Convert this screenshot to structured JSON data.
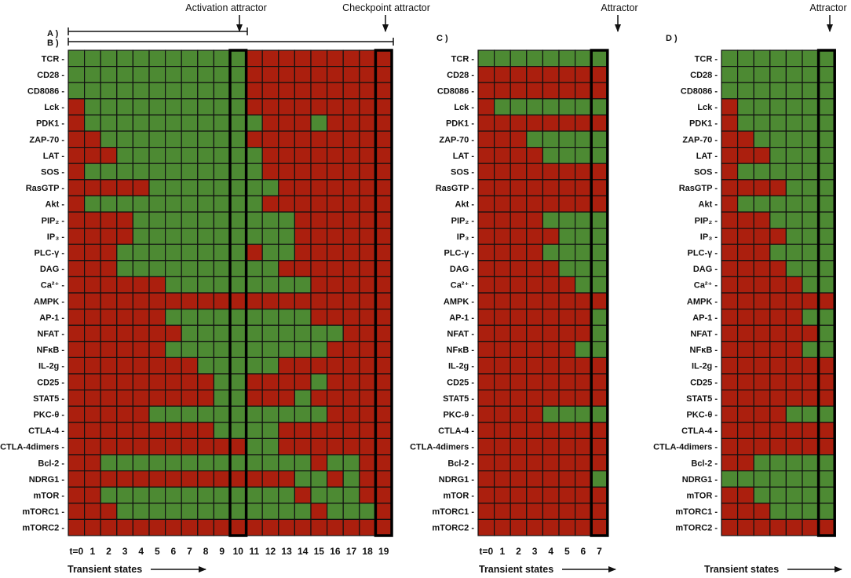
{
  "colors": {
    "on": "#4d8a33",
    "off": "#ab1f0e",
    "grid": "#111111",
    "text": "#111111"
  },
  "legend_hint": {
    "on_meaning": "active (green)",
    "off_meaning": "inactive (red)"
  },
  "annotations": {
    "activation_attractor": "Activation attractor",
    "checkpoint_attractor": "Checkpoint attractor",
    "attractor_c": "Attractor",
    "attractor_d": "Attractor",
    "transient_states": "Transient states"
  },
  "genes": [
    "TCR",
    "CD28",
    "CD8086",
    "Lck",
    "PDK1",
    "ZAP-70",
    "LAT",
    "SOS",
    "RasGTP",
    "Akt",
    "PIP₂",
    "IP₃",
    "PLC-γ",
    "DAG",
    "Ca²⁺",
    "AMPK",
    "AP-1",
    "NFAT",
    "NFκB",
    "IL-2g",
    "CD25",
    "STAT5",
    "PKC-θ",
    "CTLA-4",
    "CTLA-4dimers",
    "Bcl-2",
    "NDRG1",
    "mTOR",
    "mTORC1",
    "mTORC2"
  ],
  "panels": [
    {
      "id": "AB",
      "labels": [
        "A )",
        "B )"
      ],
      "x_ticks": [
        "t=0",
        "1",
        "2",
        "3",
        "4",
        "5",
        "6",
        "7",
        "8",
        "9",
        "10",
        "11",
        "12",
        "13",
        "14",
        "15",
        "16",
        "17",
        "18",
        "19"
      ],
      "highlight_columns": [
        10,
        19
      ],
      "grid": [
        "11111111111000000000",
        "11111111111000000000",
        "11111111111000000000",
        "01111111111000000000",
        "01111111111100010000",
        "00111111111000000000",
        "00011111111100000000",
        "01111111111100000000",
        "00000111111110000000",
        "01111111111100000000",
        "00001111111111000000",
        "00001111111111000000",
        "00011111111011000000",
        "00011111111110000000",
        "00000011111111100000",
        "00000000000000000000",
        "00000011111111100000",
        "00000001111111111000",
        "00000011111111110000",
        "00000000111110000000",
        "00000000011000010000",
        "00000000011000100000",
        "00000111111111110000",
        "00000000011110000000",
        "00000000000110000000",
        "00111111111111101100",
        "00000000000000110100",
        "00111111111111011100",
        "00011111111111101110",
        "00000000000000000000"
      ]
    },
    {
      "id": "C",
      "labels": [
        "C )"
      ],
      "x_ticks": [
        "t=0",
        "1",
        "2",
        "3",
        "4",
        "5",
        "6",
        "7"
      ],
      "highlight_columns": [
        7
      ],
      "grid": [
        "11111111",
        "00000000",
        "00000000",
        "01111111",
        "00000000",
        "00011111",
        "00001111",
        "00000000",
        "00000000",
        "00000000",
        "00001111",
        "00000111",
        "00001111",
        "00000111",
        "00000011",
        "00000000",
        "00000001",
        "00000001",
        "00000011",
        "00000000",
        "00000000",
        "00000000",
        "00001111",
        "00000000",
        "00000000",
        "00000000",
        "00000001",
        "00000000",
        "00000000",
        "00000000"
      ]
    },
    {
      "id": "D",
      "labels": [
        "D )"
      ],
      "x_ticks": [],
      "highlight_columns": [
        6
      ],
      "grid": [
        "1111111",
        "1111111",
        "1111111",
        "0111111",
        "0111111",
        "0011111",
        "0001111",
        "0111111",
        "0000111",
        "0111111",
        "0001111",
        "0000111",
        "0001111",
        "0000111",
        "0000011",
        "0000000",
        "0000011",
        "0000001",
        "0000011",
        "0000000",
        "0000000",
        "0000000",
        "0000111",
        "0000000",
        "0000000",
        "0011111",
        "1111111",
        "0011111",
        "0001111",
        "0000000"
      ]
    }
  ]
}
